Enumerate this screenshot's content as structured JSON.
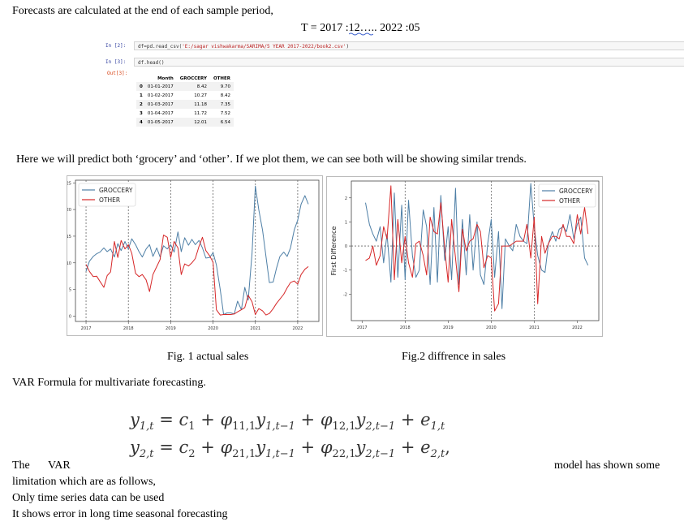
{
  "intro_line": "Forecasts are calculated at the end of each sample period,",
  "period": {
    "prefix": "T = 2017 :",
    "underlined": "12",
    "suffix": "….. 2022 :05"
  },
  "code_cells": [
    {
      "prompt": "In [2]:",
      "code_head": "df=pd.read_csv(",
      "code_str": "'E:/sagar vishwakarma/SARIMA/5 YEAR 2017-2022/book2.csv'",
      "code_tail": ")"
    },
    {
      "prompt": "In [3]:",
      "code_head": "df.head()",
      "code_str": "",
      "code_tail": ""
    }
  ],
  "out_prompt": "Out[3]:",
  "table": {
    "headers": [
      "",
      "Month",
      "GROCCERY",
      "OTHER"
    ],
    "rows": [
      [
        "0",
        "01-01-2017",
        "8.42",
        "9.70"
      ],
      [
        "1",
        "01-02-2017",
        "10.27",
        "8.42"
      ],
      [
        "2",
        "01-03-2017",
        "11.18",
        "7.35"
      ],
      [
        "3",
        "01-04-2017",
        "11.72",
        "7.52"
      ],
      [
        "4",
        "01-05-2017",
        "12.01",
        "6.54"
      ]
    ]
  },
  "para_predict": "Here we will predict both ‘grocery’ and ‘other’.  If we plot them, we can see both will be showing similar trends.",
  "chart_data": [
    {
      "type": "line",
      "title": "",
      "xlabel": "",
      "ylabel": "",
      "x_ticks": [
        "2017",
        "2018",
        "2019",
        "2020",
        "2021",
        "2022"
      ],
      "y_ticks": [
        "0",
        "5",
        "10",
        "15",
        "20",
        "25"
      ],
      "ylim": [
        -1,
        25.5
      ],
      "xlim": [
        2016.75,
        2022.5
      ],
      "grid": false,
      "vlines": [
        2017,
        2018,
        2019,
        2020,
        2021,
        2022
      ],
      "legend_placement": "top-left",
      "series": [
        {
          "name": "GROCCERY",
          "color": "#4e7fa6",
          "x": [
            2017.0,
            2017.08,
            2017.17,
            2017.25,
            2017.33,
            2017.42,
            2017.5,
            2017.58,
            2017.67,
            2017.75,
            2017.83,
            2017.92,
            2018.0,
            2018.08,
            2018.17,
            2018.25,
            2018.33,
            2018.42,
            2018.5,
            2018.58,
            2018.67,
            2018.75,
            2018.83,
            2018.92,
            2019.0,
            2019.08,
            2019.17,
            2019.25,
            2019.33,
            2019.42,
            2019.5,
            2019.58,
            2019.67,
            2019.75,
            2019.83,
            2019.92,
            2020.0,
            2020.08,
            2020.17,
            2020.25,
            2020.33,
            2020.42,
            2020.5,
            2020.58,
            2020.67,
            2020.75,
            2020.83,
            2020.92,
            2021.0,
            2021.08,
            2021.17,
            2021.25,
            2021.33,
            2021.42,
            2021.5,
            2021.58,
            2021.67,
            2021.75,
            2021.83,
            2021.92,
            2022.0,
            2022.08,
            2022.17,
            2022.25
          ],
          "y": [
            8.4,
            10.3,
            11.2,
            11.7,
            12.0,
            12.8,
            12.1,
            12.6,
            11.1,
            13.6,
            12.3,
            14.0,
            12.6,
            14.5,
            13.4,
            12.1,
            11.1,
            12.6,
            13.4,
            11.2,
            12.8,
            11.1,
            13.2,
            12.6,
            13.4,
            12.0,
            15.8,
            12.1,
            14.7,
            13.3,
            14.4,
            13.4,
            14.2,
            12.8,
            10.9,
            11.0,
            11.9,
            9.6,
            5.0,
            0.3,
            0.6,
            0.6,
            0.4,
            2.8,
            1.2,
            5.4,
            3.0,
            11.7,
            24.4,
            20.0,
            16.1,
            11.2,
            6.3,
            6.4,
            9.0,
            11.2,
            12.0,
            11.2,
            12.8,
            16.2,
            18.0,
            21.0,
            22.6,
            21.0
          ]
        },
        {
          "name": "OTHER",
          "color": "#d62728",
          "x": [
            2017.0,
            2017.08,
            2017.17,
            2017.25,
            2017.33,
            2017.42,
            2017.5,
            2017.58,
            2017.67,
            2017.75,
            2017.83,
            2017.92,
            2018.0,
            2018.08,
            2018.17,
            2018.25,
            2018.33,
            2018.42,
            2018.5,
            2018.58,
            2018.67,
            2018.75,
            2018.83,
            2018.92,
            2019.0,
            2019.08,
            2019.17,
            2019.25,
            2019.33,
            2019.42,
            2019.5,
            2019.58,
            2019.67,
            2019.75,
            2019.83,
            2019.92,
            2020.0,
            2020.08,
            2020.17,
            2020.25,
            2020.33,
            2020.42,
            2020.5,
            2020.58,
            2020.67,
            2020.75,
            2020.83,
            2020.92,
            2021.0,
            2021.08,
            2021.17,
            2021.25,
            2021.33,
            2021.42,
            2021.5,
            2021.58,
            2021.67,
            2021.75,
            2021.83,
            2021.92,
            2022.0,
            2022.08,
            2022.17,
            2022.25
          ],
          "y": [
            9.7,
            8.4,
            7.4,
            7.5,
            6.5,
            5.4,
            7.6,
            8.3,
            14.0,
            11.0,
            14.2,
            12.6,
            13.4,
            11.8,
            8.0,
            7.4,
            7.8,
            6.8,
            4.6,
            7.8,
            9.3,
            10.6,
            15.2,
            14.8,
            11.0,
            14.0,
            12.8,
            7.8,
            9.8,
            9.4,
            10.0,
            10.8,
            13.1,
            14.8,
            12.3,
            11.3,
            10.1,
            1.2,
            0.2,
            0.3,
            0.3,
            0.3,
            0.4,
            0.8,
            1.2,
            1.6,
            3.9,
            2.7,
            0.3,
            1.4,
            1.0,
            0.2,
            0.5,
            1.4,
            2.4,
            3.2,
            4.1,
            5.3,
            6.3,
            6.6,
            6.0,
            7.8,
            8.8,
            9.3
          ]
        }
      ]
    },
    {
      "type": "line",
      "title": "",
      "xlabel": "",
      "ylabel": "First Difference",
      "x_ticks": [
        "2017",
        "2018",
        "2019",
        "2020",
        "2021",
        "2022"
      ],
      "y_ticks": [
        "-2",
        "-1",
        "0",
        "1",
        "2"
      ],
      "ylim": [
        -3.1,
        2.7
      ],
      "xlim": [
        2016.75,
        2022.5
      ],
      "grid": false,
      "hline_zero": true,
      "vlines": [
        2018,
        2020,
        2021
      ],
      "legend_placement": "top-right",
      "series": [
        {
          "name": "GROCCERY",
          "color": "#4e7fa6",
          "x": [
            2017.08,
            2017.17,
            2017.25,
            2017.33,
            2017.42,
            2017.5,
            2017.58,
            2017.67,
            2017.75,
            2017.83,
            2017.92,
            2018.0,
            2018.08,
            2018.17,
            2018.25,
            2018.33,
            2018.42,
            2018.5,
            2018.58,
            2018.67,
            2018.75,
            2018.83,
            2018.92,
            2019.0,
            2019.08,
            2019.17,
            2019.25,
            2019.33,
            2019.42,
            2019.5,
            2019.58,
            2019.67,
            2019.75,
            2019.83,
            2019.92,
            2020.0,
            2020.08,
            2020.17,
            2020.25,
            2020.33,
            2020.42,
            2020.5,
            2020.58,
            2020.67,
            2020.75,
            2020.83,
            2020.92,
            2021.0,
            2021.08,
            2021.17,
            2021.25,
            2021.33,
            2021.42,
            2021.5,
            2021.58,
            2021.67,
            2021.75,
            2021.83,
            2021.92,
            2022.0,
            2022.08,
            2022.17,
            2022.25
          ],
          "y": [
            1.8,
            0.9,
            0.5,
            0.2,
            0.8,
            -0.7,
            0.5,
            -1.5,
            2.2,
            -1.3,
            1.7,
            -1.4,
            1.9,
            -0.4,
            -1.3,
            -1.0,
            1.5,
            0.8,
            -1.6,
            1.6,
            -1.5,
            2.1,
            -0.6,
            0.8,
            -1.4,
            2.4,
            -1.6,
            1.1,
            -1.2,
            1.3,
            -1.0,
            1.0,
            -1.2,
            -1.6,
            0.1,
            1.1,
            -1.3,
            0.6,
            -2.6,
            0.3,
            0.0,
            -0.2,
            0.9,
            0.4,
            0.2,
            0.1,
            2.6,
            0.8,
            -0.4,
            -1.0,
            -1.1,
            0.1,
            0.6,
            0.2,
            0.7,
            0.8,
            0.6,
            1.3,
            0.3,
            0.9,
            1.2,
            -0.5,
            -0.8
          ]
        },
        {
          "name": "OTHER",
          "color": "#d62728",
          "x": [
            2017.08,
            2017.17,
            2017.25,
            2017.33,
            2017.42,
            2017.5,
            2017.58,
            2017.67,
            2017.75,
            2017.83,
            2017.92,
            2018.0,
            2018.08,
            2018.17,
            2018.25,
            2018.33,
            2018.42,
            2018.5,
            2018.58,
            2018.67,
            2018.75,
            2018.83,
            2018.92,
            2019.0,
            2019.08,
            2019.17,
            2019.25,
            2019.33,
            2019.42,
            2019.5,
            2019.58,
            2019.67,
            2019.75,
            2019.83,
            2019.92,
            2020.0,
            2020.08,
            2020.17,
            2020.25,
            2020.33,
            2020.42,
            2020.5,
            2020.58,
            2020.67,
            2020.75,
            2020.83,
            2020.92,
            2021.0,
            2021.08,
            2021.17,
            2021.25,
            2021.33,
            2021.42,
            2021.5,
            2021.58,
            2021.67,
            2021.75,
            2021.83,
            2021.92,
            2022.0,
            2022.08,
            2022.17,
            2022.25
          ],
          "y": [
            -0.6,
            -0.5,
            0.0,
            -0.8,
            -0.4,
            0.8,
            0.3,
            2.5,
            -1.4,
            1.1,
            -0.7,
            0.4,
            -0.7,
            -1.3,
            0.1,
            0.2,
            -0.4,
            -1.2,
            1.2,
            0.6,
            0.5,
            1.8,
            -0.1,
            -1.5,
            1.1,
            -0.5,
            -1.9,
            0.7,
            -0.2,
            0.2,
            0.3,
            0.9,
            0.6,
            -0.9,
            -0.4,
            -0.5,
            -2.7,
            -2.4,
            0.0,
            0.0,
            0.0,
            0.1,
            0.2,
            0.2,
            0.2,
            0.9,
            -0.5,
            1.2,
            -2.4,
            0.4,
            -0.3,
            0.1,
            0.4,
            0.4,
            0.3,
            0.9,
            0.4,
            0.4,
            0.1,
            1.3,
            0.5,
            1.6,
            0.5
          ]
        }
      ]
    }
  ],
  "fig1_caption": "Fig. 1 actual sales",
  "fig2_caption": "Fig.2 diffrence in sales",
  "var_heading": "VAR  Formula  for multivariate forecasting.",
  "equations": [
    {
      "lhs": "y",
      "lhs_sub": "1,t",
      "c": "c",
      "c_sub": "1",
      "phi_a_sub": "11,1",
      "y_a_sub": "1,t−1",
      "phi_b_sub": "12,1",
      "y_b_sub": "2,t−1",
      "e_sub": "1,t",
      "end": ""
    },
    {
      "lhs": "y",
      "lhs_sub": "2,t",
      "c": "c",
      "c_sub": "2",
      "phi_a_sub": "21,1",
      "y_a_sub": "1,t−1",
      "phi_b_sub": "22,1",
      "y_b_sub": "2,t−1",
      "e_sub": "2,t",
      "end": ","
    }
  ],
  "limitation": {
    "the": "The",
    "var": "VAR",
    "right": "model has shown some",
    "line2": "limitation which are as follows,",
    "line3": "Only time series data can be used",
    "line4": "It shows error in long time seasonal forecasting"
  }
}
